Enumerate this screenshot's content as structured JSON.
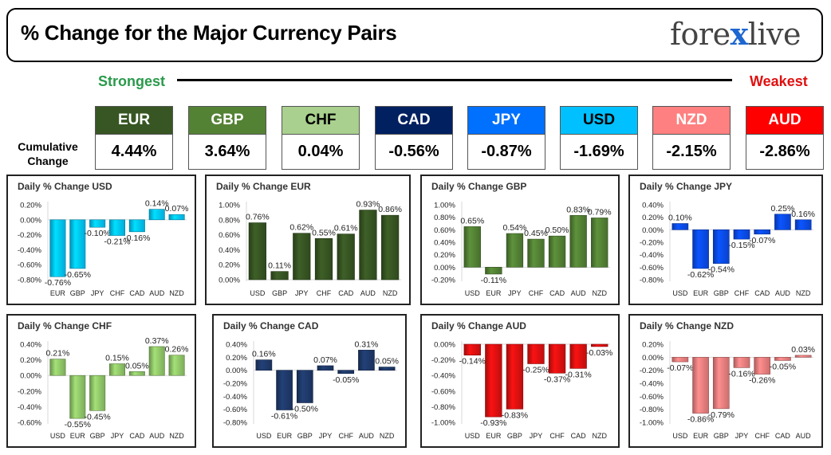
{
  "header": {
    "title": "% Change for the Major Currency Pairs",
    "logo_left": "fore",
    "logo_x": "x",
    "logo_right": "live"
  },
  "ranking": {
    "strongest_label": "Strongest",
    "weakest_label": "Weakest",
    "cumulative_label_1": "Cumulative",
    "cumulative_label_2": "Change",
    "currencies": [
      {
        "code": "EUR",
        "value": "4.44%",
        "bg": "#375623",
        "fg": "#ffffff"
      },
      {
        "code": "GBP",
        "value": "3.64%",
        "bg": "#548235",
        "fg": "#ffffff"
      },
      {
        "code": "CHF",
        "value": "0.04%",
        "bg": "#a9d08e",
        "fg": "#000000"
      },
      {
        "code": "CAD",
        "value": "-0.56%",
        "bg": "#002060",
        "fg": "#ffffff"
      },
      {
        "code": "JPY",
        "value": "-0.87%",
        "bg": "#0070ff",
        "fg": "#ffffff"
      },
      {
        "code": "USD",
        "value": "-1.69%",
        "bg": "#00c0ff",
        "fg": "#000000"
      },
      {
        "code": "NZD",
        "value": "-2.15%",
        "bg": "#ff8080",
        "fg": "#ffffff"
      },
      {
        "code": "AUD",
        "value": "-2.86%",
        "bg": "#ff0000",
        "fg": "#ffffff"
      }
    ]
  },
  "chart_data": [
    {
      "type": "bar",
      "title": "Daily % Change USD",
      "categories": [
        "EUR",
        "GBP",
        "JPY",
        "CHF",
        "CAD",
        "AUD",
        "NZD"
      ],
      "values": [
        -0.76,
        -0.65,
        -0.1,
        -0.21,
        -0.16,
        0.14,
        0.07
      ],
      "labels": [
        "-0.76%",
        "-0.65%",
        "-0.10%",
        "-0.21%",
        "-0.16%",
        "0.14%",
        "0.07%"
      ],
      "ylim": [
        -0.8,
        0.2
      ],
      "ticks": [
        0.2,
        0,
        -0.2,
        -0.4,
        -0.6,
        -0.8
      ],
      "tick_labels": [
        "0.20%",
        "0.00%",
        "-0.20%",
        "-0.40%",
        "-0.60%",
        "-0.80%"
      ],
      "color": "#00c8ff",
      "grid": false
    },
    {
      "type": "bar",
      "title": "Daily % Change EUR",
      "categories": [
        "USD",
        "GBP",
        "JPY",
        "CHF",
        "CAD",
        "AUD",
        "NZD"
      ],
      "values": [
        0.76,
        0.11,
        0.62,
        0.55,
        0.61,
        0.93,
        0.86
      ],
      "labels": [
        "0.76%",
        "0.11%",
        "0.62%",
        "0.55%",
        "0.61%",
        "0.93%",
        "0.86%"
      ],
      "ylim": [
        0,
        1.0
      ],
      "ticks": [
        1.0,
        0.8,
        0.6,
        0.4,
        0.2,
        0
      ],
      "tick_labels": [
        "1.00%",
        "0.80%",
        "0.60%",
        "0.40%",
        "0.20%",
        "0.00%"
      ],
      "color": "#375623",
      "grid": false
    },
    {
      "type": "bar",
      "title": "Daily % Change GBP",
      "categories": [
        "USD",
        "EUR",
        "JPY",
        "CHF",
        "CAD",
        "AUD",
        "NZD"
      ],
      "values": [
        0.65,
        -0.11,
        0.54,
        0.45,
        0.5,
        0.83,
        0.79
      ],
      "labels": [
        "0.65%",
        "-0.11%",
        "0.54%",
        "0.45%",
        "0.50%",
        "0.83%",
        "0.79%"
      ],
      "ylim": [
        -0.2,
        1.0
      ],
      "ticks": [
        1.0,
        0.8,
        0.6,
        0.4,
        0.2,
        0,
        -0.2
      ],
      "tick_labels": [
        "1.00%",
        "0.80%",
        "0.60%",
        "0.40%",
        "0.20%",
        "0.00%",
        "-0.20%"
      ],
      "color": "#548235",
      "grid": false
    },
    {
      "type": "bar",
      "title": "Daily % Change JPY",
      "categories": [
        "USD",
        "EUR",
        "GBP",
        "CHF",
        "CAD",
        "AUD",
        "NZD"
      ],
      "values": [
        0.1,
        -0.62,
        -0.54,
        -0.15,
        -0.07,
        0.25,
        0.16
      ],
      "labels": [
        "0.10%",
        "-0.62%",
        "-0.54%",
        "-0.15%",
        "-0.07%",
        "0.25%",
        "0.16%"
      ],
      "ylim": [
        -0.8,
        0.4
      ],
      "ticks": [
        0.4,
        0.2,
        0,
        -0.2,
        -0.4,
        -0.6,
        -0.8
      ],
      "tick_labels": [
        "0.40%",
        "0.20%",
        "0.00%",
        "-0.20%",
        "-0.40%",
        "-0.60%",
        "-0.80%"
      ],
      "color": "#0a4cf0",
      "grid": false
    },
    {
      "type": "bar",
      "title": "Daily % Change CHF",
      "categories": [
        "USD",
        "EUR",
        "GBP",
        "JPY",
        "CAD",
        "AUD",
        "NZD"
      ],
      "values": [
        0.21,
        -0.55,
        -0.45,
        0.15,
        0.05,
        0.37,
        0.26
      ],
      "labels": [
        "0.21%",
        "-0.55%",
        "-0.45%",
        "0.15%",
        "0.05%",
        "0.37%",
        "0.26%"
      ],
      "ylim": [
        -0.6,
        0.4
      ],
      "ticks": [
        0.4,
        0.2,
        0,
        -0.2,
        -0.4,
        -0.6
      ],
      "tick_labels": [
        "0.40%",
        "0.20%",
        "0.00%",
        "-0.20%",
        "-0.40%",
        "-0.60%"
      ],
      "color": "#92c96a",
      "grid": false
    },
    {
      "type": "bar",
      "title": "Daily % Change CAD",
      "categories": [
        "USD",
        "EUR",
        "GBP",
        "JPY",
        "CHF",
        "AUD",
        "NZD"
      ],
      "values": [
        0.16,
        -0.61,
        -0.5,
        0.07,
        -0.05,
        0.31,
        0.05
      ],
      "labels": [
        "0.16%",
        "-0.61%",
        "-0.50%",
        "0.07%",
        "-0.05%",
        "0.31%",
        "0.05%"
      ],
      "ylim": [
        -0.8,
        0.4
      ],
      "ticks": [
        0.4,
        0.2,
        0,
        -0.2,
        -0.4,
        -0.6,
        -0.8
      ],
      "tick_labels": [
        "0.40%",
        "0.20%",
        "0.00%",
        "-0.20%",
        "-0.40%",
        "-0.60%",
        "-0.80%"
      ],
      "color": "#1f3a6b",
      "grid": false
    },
    {
      "type": "bar",
      "title": "Daily % Change AUD",
      "categories": [
        "USD",
        "EUR",
        "GBP",
        "JPY",
        "CHF",
        "CAD",
        "NZD"
      ],
      "values": [
        -0.14,
        -0.93,
        -0.83,
        -0.25,
        -0.37,
        -0.31,
        -0.03
      ],
      "labels": [
        "-0.14%",
        "-0.93%",
        "-0.83%",
        "-0.25%",
        "-0.37%",
        "-0.31%",
        "-0.03%"
      ],
      "ylim": [
        -1.0,
        0
      ],
      "ticks": [
        0,
        -0.2,
        -0.4,
        -0.6,
        -0.8,
        -1.0
      ],
      "tick_labels": [
        "0.00%",
        "-0.20%",
        "-0.40%",
        "-0.60%",
        "-0.80%",
        "-1.00%"
      ],
      "color": "#e01010",
      "grid": false
    },
    {
      "type": "bar",
      "title": "Daily % Change NZD",
      "categories": [
        "USD",
        "EUR",
        "GBP",
        "JPY",
        "CHF",
        "CAD",
        "AUD"
      ],
      "values": [
        -0.07,
        -0.86,
        -0.79,
        -0.16,
        -0.26,
        -0.05,
        0.03
      ],
      "labels": [
        "-0.07%",
        "-0.86%",
        "-0.79%",
        "-0.16%",
        "-0.26%",
        "-0.05%",
        "0.03%"
      ],
      "ylim": [
        -1.0,
        0.2
      ],
      "ticks": [
        0.2,
        0,
        -0.2,
        -0.4,
        -0.6,
        -0.8,
        -1.0
      ],
      "tick_labels": [
        "0.20%",
        "0.00%",
        "-0.20%",
        "-0.40%",
        "-0.60%",
        "-0.80%",
        "-1.00%"
      ],
      "color": "#f08080",
      "grid": false
    }
  ]
}
